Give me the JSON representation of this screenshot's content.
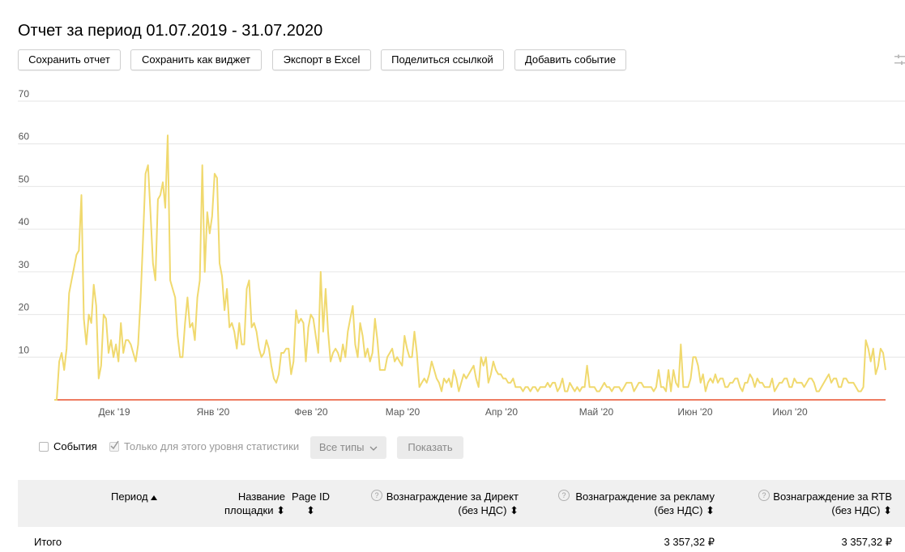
{
  "page": {
    "title": "Отчет за период 01.07.2019 - 31.07.2020"
  },
  "toolbar": {
    "buttons": [
      "Сохранить отчет",
      "Сохранить как виджет",
      "Экспорт в Excel",
      "Поделиться ссылкой",
      "Добавить событие"
    ]
  },
  "filters": {
    "events_label": "События",
    "level_only_label": "Только для этого уровня статистики",
    "types_label": "Все типы",
    "show_label": "Показать"
  },
  "table": {
    "columns": [
      {
        "line1": "Период",
        "line2": ""
      },
      {
        "line1": "Название",
        "line2": "площадки"
      },
      {
        "line1": "Page ID",
        "line2": ""
      },
      {
        "line1": "Вознаграждение за Директ",
        "line2": "(без НДС)"
      },
      {
        "line1": "Вознаграждение за рекламу",
        "line2": "(без НДС)"
      },
      {
        "line1": "Вознаграждение за RTB",
        "line2": "(без НДС)"
      }
    ],
    "total": {
      "label": "Итого",
      "advertising": "3 357,32 ₽",
      "rtb": "3 357,32 ₽"
    }
  },
  "colors": {
    "series": "#f0d96e",
    "baseline": "#e8502e",
    "grid": "#e6e6e6",
    "axis_text": "#555555"
  },
  "chart_data": {
    "type": "line",
    "ylim": [
      0,
      70
    ],
    "yticks": [
      10,
      20,
      30,
      40,
      50,
      60,
      70
    ],
    "x_tick_labels": [
      "Дек '19",
      "Янв '20",
      "Фев '20",
      "Мар '20",
      "Апр '20",
      "Май '20",
      "Июн '20",
      "Июл '20"
    ],
    "grid": true,
    "series": [
      {
        "values": [
          0,
          0,
          9,
          11,
          7,
          12,
          25,
          28,
          31,
          34,
          35,
          48,
          19,
          13,
          20,
          18,
          27,
          22,
          5,
          8,
          20,
          19,
          11,
          14,
          10,
          13,
          9,
          18,
          11,
          14,
          14,
          13,
          11,
          9,
          13,
          24,
          38,
          53,
          55,
          44,
          32,
          28,
          47,
          48,
          51,
          45,
          62,
          28,
          26,
          24,
          15,
          10,
          10,
          18,
          24,
          17,
          18,
          14,
          24,
          28,
          55,
          30,
          44,
          39,
          43,
          53,
          52,
          32,
          29,
          21,
          26,
          17,
          18,
          16,
          12,
          18,
          13,
          13,
          26,
          28,
          17,
          18,
          16,
          12,
          10,
          11,
          14,
          12,
          8,
          5,
          4,
          6,
          11,
          11,
          12,
          12,
          6,
          9,
          21,
          18,
          19,
          18,
          9,
          17,
          20,
          19,
          15,
          11,
          30,
          16,
          26,
          16,
          9,
          11,
          12,
          11,
          9,
          13,
          10,
          16,
          19,
          22,
          13,
          10,
          18,
          15,
          10,
          12,
          9,
          11,
          19,
          14,
          7,
          7,
          7,
          10,
          11,
          12,
          9,
          10,
          9,
          8,
          15,
          12,
          10,
          10,
          16,
          11,
          3,
          4,
          5,
          4,
          6,
          9,
          7,
          5,
          4,
          2,
          5,
          4,
          5,
          3,
          7,
          5,
          2,
          4,
          6,
          5,
          6,
          7,
          8,
          5,
          3,
          10,
          8,
          10,
          4,
          6,
          9,
          7,
          6,
          6,
          5,
          5,
          4,
          4,
          5,
          3,
          3,
          3,
          2,
          3,
          3,
          2,
          3,
          3,
          2,
          3,
          3,
          3,
          4,
          3,
          4,
          4,
          2,
          3,
          5,
          2,
          2,
          4,
          3,
          2,
          3,
          2,
          3,
          3,
          8,
          3,
          3,
          3,
          2,
          2,
          3,
          4,
          3,
          3,
          2,
          3,
          3,
          3,
          2,
          3,
          4,
          4,
          4,
          2,
          3,
          4,
          4,
          3,
          3,
          3,
          3,
          2,
          3,
          7,
          3,
          3,
          2,
          7,
          2,
          7,
          4,
          3,
          13,
          3,
          3,
          3,
          5,
          10,
          10,
          8,
          4,
          6,
          2,
          4,
          5,
          4,
          6,
          4,
          5,
          5,
          3,
          3,
          4,
          4,
          5,
          5,
          3,
          2,
          4,
          4,
          6,
          5,
          3,
          5,
          4,
          4,
          3,
          3,
          3,
          5,
          2,
          3,
          4,
          4,
          5,
          5,
          3,
          3,
          5,
          4,
          4,
          4,
          3,
          4,
          5,
          5,
          4,
          2,
          2,
          3,
          4,
          5,
          6,
          4,
          5,
          5,
          3,
          3,
          5,
          5,
          4,
          4,
          4,
          3,
          2,
          2,
          3,
          14,
          12,
          9,
          12,
          6,
          8,
          12,
          11,
          7
        ]
      },
      {
        "values": [
          0,
          0
        ]
      }
    ]
  }
}
